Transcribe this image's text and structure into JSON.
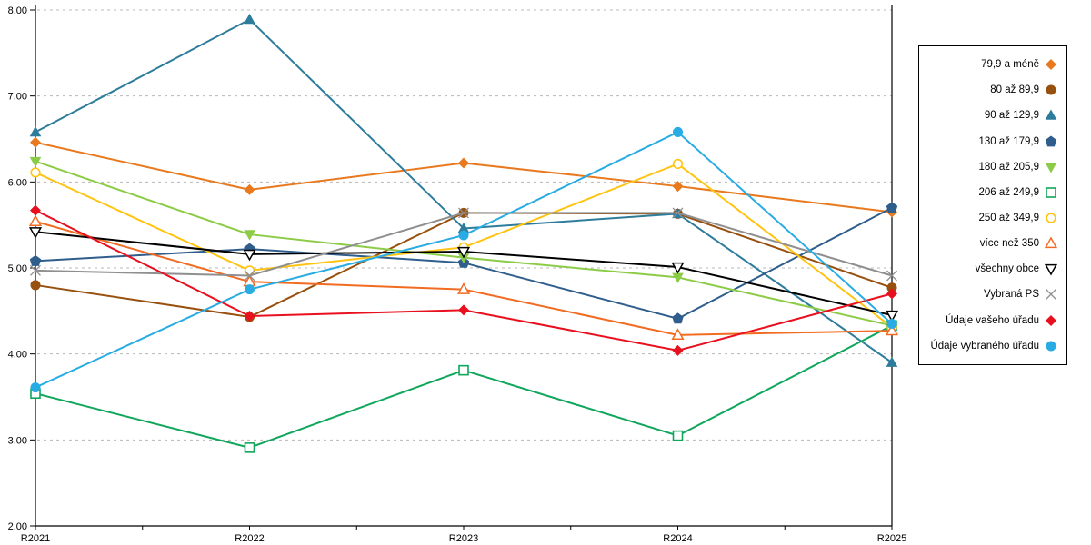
{
  "chart_data": {
    "type": "line",
    "title": "",
    "xlabel": "",
    "ylabel": "",
    "categories": [
      "R2021",
      "R2022",
      "R2023",
      "R2024",
      "R2025"
    ],
    "ylim": [
      2,
      8
    ],
    "yticks": [
      {
        "value": 8,
        "label": "8.00"
      },
      {
        "value": 7,
        "label": "7.00"
      },
      {
        "value": 6,
        "label": "6.00"
      },
      {
        "value": 5,
        "label": "5.00"
      },
      {
        "value": 4,
        "label": "4.00"
      },
      {
        "value": 3,
        "label": "3.00"
      },
      {
        "value": 2,
        "label": "2.00"
      }
    ],
    "grid": "horizontal-dashed",
    "legend_position": "right",
    "series": [
      {
        "label": "79,9 a méně",
        "color": "#E8791E",
        "marker": "diamond",
        "values": [
          6.46,
          5.91,
          6.22,
          5.95,
          5.65
        ]
      },
      {
        "label": "80 až 89,9",
        "color": "#98500E",
        "marker": "circle",
        "values": [
          4.8,
          4.43,
          5.64,
          5.63,
          4.77
        ]
      },
      {
        "label": "90 až 129,9",
        "color": "#2E7C9C",
        "marker": "triangle-up",
        "values": [
          6.58,
          7.89,
          5.46,
          5.63,
          3.9
        ]
      },
      {
        "label": "130 až 179,9",
        "color": "#2F5D8C",
        "marker": "pentagon",
        "values": [
          5.08,
          5.22,
          5.06,
          4.41,
          5.7
        ]
      },
      {
        "label": "180 až 205,9",
        "color": "#8CCB46",
        "marker": "triangle-down",
        "values": [
          6.24,
          5.39,
          5.12,
          4.89,
          4.33
        ]
      },
      {
        "label": "206 až 249,9",
        "color": "#10A65C",
        "marker": "square-open",
        "values": [
          3.54,
          2.91,
          3.81,
          3.05,
          4.33
        ]
      },
      {
        "label": "250 až 349,9",
        "color": "#FFC412",
        "marker": "circle-open",
        "values": [
          6.11,
          4.97,
          5.24,
          6.21,
          4.31
        ]
      },
      {
        "label": "více než 350",
        "color": "#F26B22",
        "marker": "triangle-up-open",
        "values": [
          5.54,
          4.84,
          4.75,
          4.22,
          4.27
        ]
      },
      {
        "label": "všechny obce",
        "color": "#000000",
        "marker": "triangle-down-open",
        "values": [
          5.42,
          5.16,
          5.19,
          5.01,
          4.45
        ]
      },
      {
        "label": "Vybraná PS",
        "color": "#8F8F8F",
        "marker": "x",
        "values": [
          4.97,
          4.91,
          5.64,
          5.64,
          4.91
        ]
      },
      {
        "label": "Údaje vašeho úřadu",
        "color": "#E8101E",
        "marker": "diamond",
        "values": [
          5.67,
          4.44,
          4.51,
          4.04,
          4.7
        ]
      },
      {
        "label": "Údaje vybraného úřadu",
        "color": "#29ABE3",
        "marker": "circle",
        "values": [
          3.61,
          4.75,
          5.38,
          6.58,
          4.35
        ]
      }
    ]
  }
}
